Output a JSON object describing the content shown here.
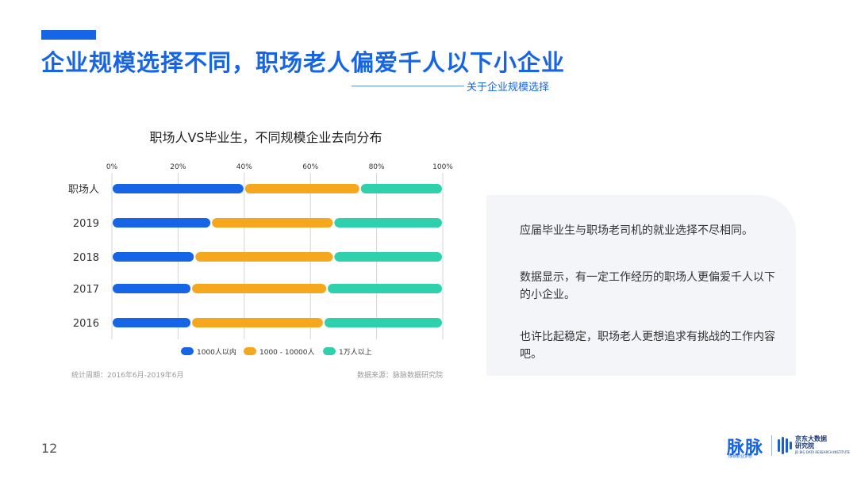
{
  "header": {
    "title": "企业规模选择不同，职场老人偏爱千人以下小企业",
    "subtitle": "关于企业规模选择"
  },
  "chart": {
    "title": "职场人VS毕业生，不同规模企业去向分布",
    "footnote_left": "统计周期：2016年6月-2019年6月",
    "footnote_right": "数据来源：脉脉数据研究院"
  },
  "chart_data": {
    "type": "bar",
    "orientation": "horizontal",
    "stacked": true,
    "title": "职场人VS毕业生，不同规模企业去向分布",
    "categories": [
      "职场人",
      "2019",
      "2018",
      "2017",
      "2016"
    ],
    "x_ticks": [
      "0%",
      "20%",
      "40%",
      "60%",
      "80%",
      "100%"
    ],
    "xlim": [
      0,
      100
    ],
    "legend_position": "bottom",
    "series": [
      {
        "name": "1000人以内",
        "color": "#1565e6",
        "values": [
          40,
          30,
          25,
          24,
          24
        ]
      },
      {
        "name": "1000 - 10000人",
        "color": "#f5a71e",
        "values": [
          35,
          37,
          42,
          41,
          40
        ]
      },
      {
        "name": "1万人以上",
        "color": "#2fd1ac",
        "values": [
          25,
          33,
          33,
          35,
          36
        ]
      }
    ]
  },
  "panel": {
    "paragraph1": "应届毕业生与职场老司机的就业选择不尽相同。",
    "paragraph2": "数据显示，有一定工作经历的职场人更偏爱千人以下的小企业。",
    "paragraph3": "也许比起稳定，职场老人更想追求有挑战的工作内容吧。"
  },
  "footer": {
    "page_number": "12",
    "logo_maimai": "脉脉",
    "logo_maimai_sub": "成就职业梦想",
    "logo_jd_line1": "京东大数据",
    "logo_jd_line2": "研究院",
    "logo_jd_en": "JD BIG DATA RESEARCH INSTITUTE"
  },
  "colors": {
    "brand_blue": "#1565e6",
    "orange": "#f5a71e",
    "teal": "#2fd1ac"
  }
}
